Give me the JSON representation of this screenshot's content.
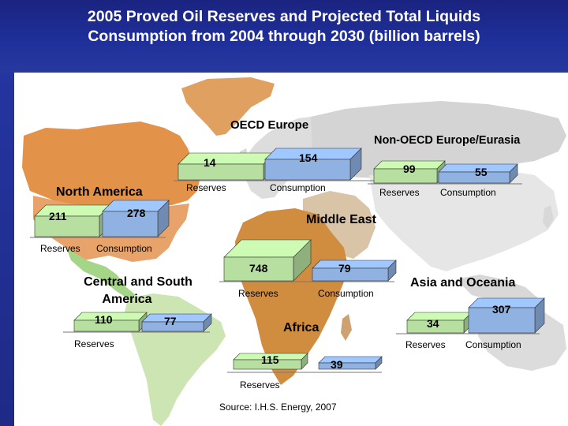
{
  "slide": {
    "title_line1": "2005 Proved Oil Reserves and Projected Total Liquids",
    "title_line2": "Consumption from 2004 through 2030 (billion barrels)",
    "source": "Source: I.H.S. Energy, 2007"
  },
  "colors": {
    "title_band": "#1f2f9a",
    "reserves_bar": "#b7e0a0",
    "consumption_bar": "#8fb2e3",
    "ocean": "#ffffff"
  },
  "regions": [
    {
      "name": "OECD Europe",
      "reserves": "14",
      "consumption": "154",
      "reserves_label": "Reserves",
      "consumption_label": "Consumption"
    },
    {
      "name": "Non-OECD Europe/Eurasia",
      "reserves": "99",
      "consumption": "55",
      "reserves_label": "Reserves",
      "consumption_label": "Consumption"
    },
    {
      "name": "North America",
      "reserves": "211",
      "consumption": "278",
      "reserves_label": "Reserves",
      "consumption_label": "Consumption"
    },
    {
      "name": "Middle East",
      "reserves": "748",
      "consumption": "79",
      "reserves_label": "Reserves",
      "consumption_label": "Consumption"
    },
    {
      "name_line1": "Central and South",
      "name_line2": "America",
      "reserves": "110",
      "consumption": "77",
      "reserves_label": "Reserves"
    },
    {
      "name": "Africa",
      "reserves": "115",
      "consumption": "39",
      "reserves_label": "Reserves"
    },
    {
      "name": "Asia and Oceania",
      "reserves": "34",
      "consumption": "307",
      "reserves_label": "Reserves",
      "consumption_label": "Consumption"
    }
  ]
}
